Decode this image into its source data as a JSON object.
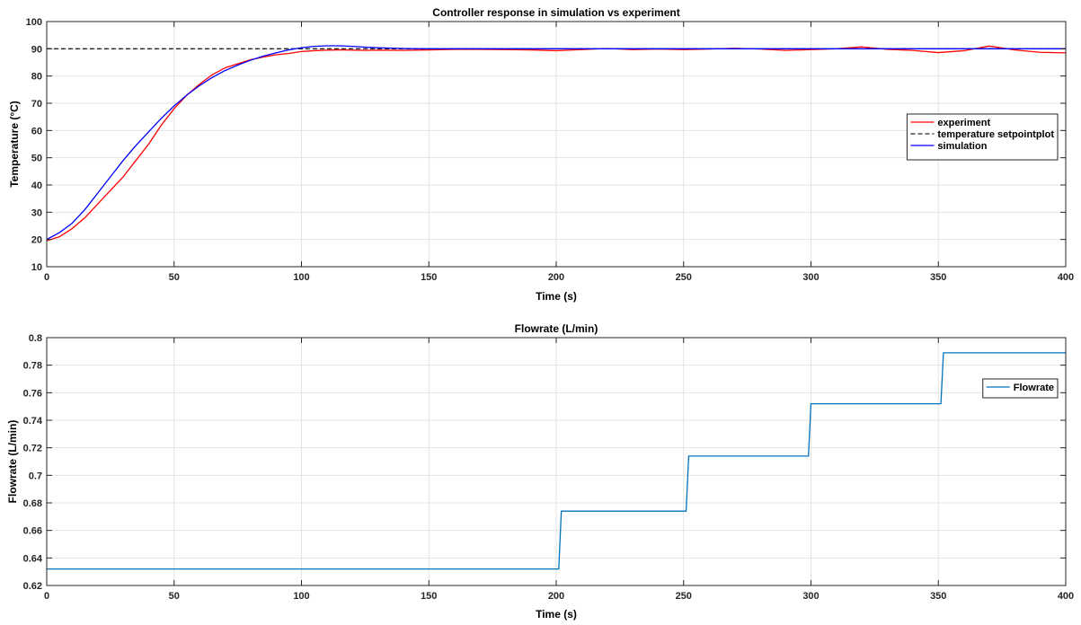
{
  "chart_data": [
    {
      "type": "line",
      "title": "Controller response in simulation vs experiment",
      "xlabel": "Time (s)",
      "ylabel": "Temperature (°C)",
      "xlim": [
        0,
        400
      ],
      "ylim": [
        10,
        100
      ],
      "xticks": [
        0,
        50,
        100,
        150,
        200,
        250,
        300,
        350,
        400
      ],
      "yticks": [
        10,
        20,
        30,
        40,
        50,
        60,
        70,
        80,
        90,
        100
      ],
      "grid": true,
      "legend": "right",
      "series": [
        {
          "name": "experiment",
          "color": "#ff0000",
          "style": "solid",
          "x": [
            0,
            5,
            10,
            15,
            20,
            25,
            30,
            35,
            40,
            45,
            50,
            55,
            60,
            65,
            70,
            75,
            80,
            85,
            90,
            95,
            100,
            105,
            110,
            115,
            120,
            125,
            130,
            140,
            150,
            160,
            170,
            180,
            190,
            200,
            210,
            220,
            230,
            240,
            250,
            260,
            270,
            280,
            290,
            300,
            310,
            320,
            330,
            340,
            350,
            360,
            370,
            380,
            390,
            400
          ],
          "y": [
            19.5,
            21,
            24,
            28,
            33,
            38,
            43,
            49,
            55,
            62,
            68,
            73,
            77,
            80.5,
            83,
            84.5,
            86,
            87,
            87.8,
            88.3,
            89,
            89.3,
            89.5,
            89.6,
            89.5,
            89.4,
            89.5,
            89.4,
            89.6,
            89.8,
            89.8,
            89.7,
            89.6,
            89.3,
            89.7,
            90.1,
            89.7,
            89.9,
            89.7,
            89.9,
            90.2,
            89.9,
            89.4,
            89.7,
            90.0,
            90.7,
            89.8,
            89.4,
            88.6,
            89.3,
            91.0,
            89.6,
            88.7,
            88.5
          ]
        },
        {
          "name": "temperature setpointplot",
          "color": "#262626",
          "style": "dashed",
          "x": [
            0,
            400
          ],
          "y": [
            90,
            90
          ]
        },
        {
          "name": "simulation",
          "color": "#0000ff",
          "style": "solid",
          "x": [
            0,
            5,
            10,
            15,
            20,
            25,
            30,
            35,
            40,
            45,
            50,
            55,
            60,
            65,
            70,
            75,
            80,
            85,
            90,
            95,
            100,
            105,
            110,
            115,
            120,
            125,
            130,
            140,
            150,
            160,
            170,
            180,
            190,
            200,
            250,
            300,
            350,
            400
          ],
          "y": [
            20,
            22.5,
            26,
            31,
            37,
            43,
            49,
            54.5,
            59.5,
            64.5,
            69,
            73,
            76.5,
            79.5,
            82,
            84,
            85.8,
            87.3,
            88.5,
            89.6,
            90.4,
            90.9,
            91.1,
            91.1,
            90.9,
            90.6,
            90.4,
            90.1,
            90.0,
            90.0,
            90.0,
            90.0,
            90.0,
            90.0,
            90.0,
            90.0,
            90.0,
            90.0
          ]
        }
      ]
    },
    {
      "type": "line",
      "title": "Flowrate (L/min)",
      "xlabel": "Time (s)",
      "ylabel": "Flowrate (L/min)",
      "xlim": [
        0,
        400
      ],
      "ylim": [
        0.62,
        0.8
      ],
      "xticks": [
        0,
        50,
        100,
        150,
        200,
        250,
        300,
        350,
        400
      ],
      "yticks": [
        0.62,
        0.64,
        0.66,
        0.68,
        0.7,
        0.72,
        0.74,
        0.76,
        0.78,
        0.8
      ],
      "yticklabels": [
        "0.62",
        "0.64",
        "0.66",
        "0.68",
        "0.7",
        "0.72",
        "0.74",
        "0.76",
        "0.78",
        "0.8"
      ],
      "grid": true,
      "legend": "right",
      "series": [
        {
          "name": "Flowrate",
          "color": "#0072bd",
          "style": "solid",
          "x": [
            0,
            201,
            202,
            251,
            252,
            299,
            300,
            351,
            352,
            400
          ],
          "y": [
            0.632,
            0.632,
            0.674,
            0.674,
            0.714,
            0.714,
            0.752,
            0.752,
            0.789,
            0.789
          ]
        }
      ]
    }
  ]
}
